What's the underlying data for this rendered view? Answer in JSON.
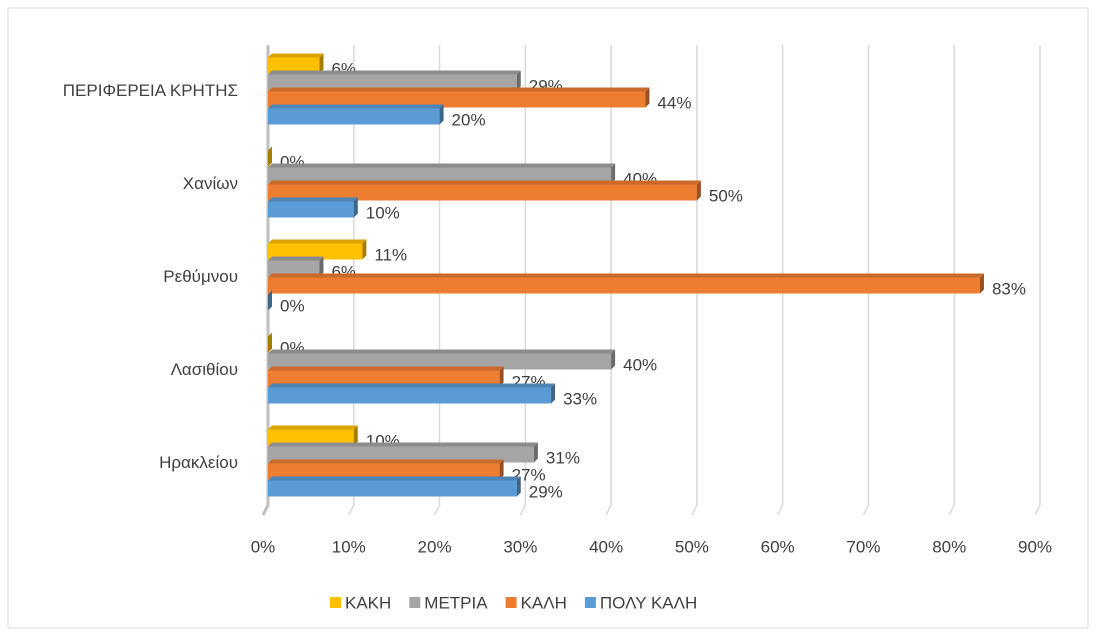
{
  "chart_data": {
    "type": "hbar",
    "categories": [
      "ΠΕΡΙΦΕΡΕΙΑ ΚΡΗΤΗΣ",
      "Χανίων",
      "Ρεθύμνου",
      "Λασιθίου",
      "Ηρακλείου"
    ],
    "series": [
      {
        "name": "ΚΑΚΗ",
        "color": "#ffc000",
        "values": [
          6,
          0,
          11,
          0,
          10
        ],
        "value_labels": [
          "6%",
          "0%",
          "11%",
          "0%",
          "10%"
        ]
      },
      {
        "name": "ΜΕΤΡΙΑ",
        "color": "#a5a5a5",
        "values": [
          29,
          40,
          6,
          40,
          31
        ],
        "value_labels": [
          "29%",
          "40%",
          "6%",
          "40%",
          "31%"
        ]
      },
      {
        "name": "ΚΑΛΗ",
        "color": "#ed7d31",
        "values": [
          44,
          50,
          83,
          27,
          27
        ],
        "value_labels": [
          "44%",
          "50%",
          "83%",
          "27%",
          "27%"
        ]
      },
      {
        "name": "ΠΟΛΥ ΚΑΛΗ",
        "color": "#5b9bd5",
        "values": [
          20,
          10,
          0,
          33,
          29
        ],
        "value_labels": [
          "20%",
          "10%",
          "0%",
          "33%",
          "29%"
        ]
      }
    ],
    "xlim": [
      0,
      90
    ],
    "xticks": [
      {
        "value": 0,
        "label": "0%"
      },
      {
        "value": 10,
        "label": "10%"
      },
      {
        "value": 20,
        "label": "20%"
      },
      {
        "value": 30,
        "label": "30%"
      },
      {
        "value": 40,
        "label": "40%"
      },
      {
        "value": 50,
        "label": "50%"
      },
      {
        "value": 60,
        "label": "60%"
      },
      {
        "value": 70,
        "label": "70%"
      },
      {
        "value": 80,
        "label": "80%"
      },
      {
        "value": 90,
        "label": "90%"
      }
    ],
    "grid": true,
    "legend": "bottom"
  }
}
